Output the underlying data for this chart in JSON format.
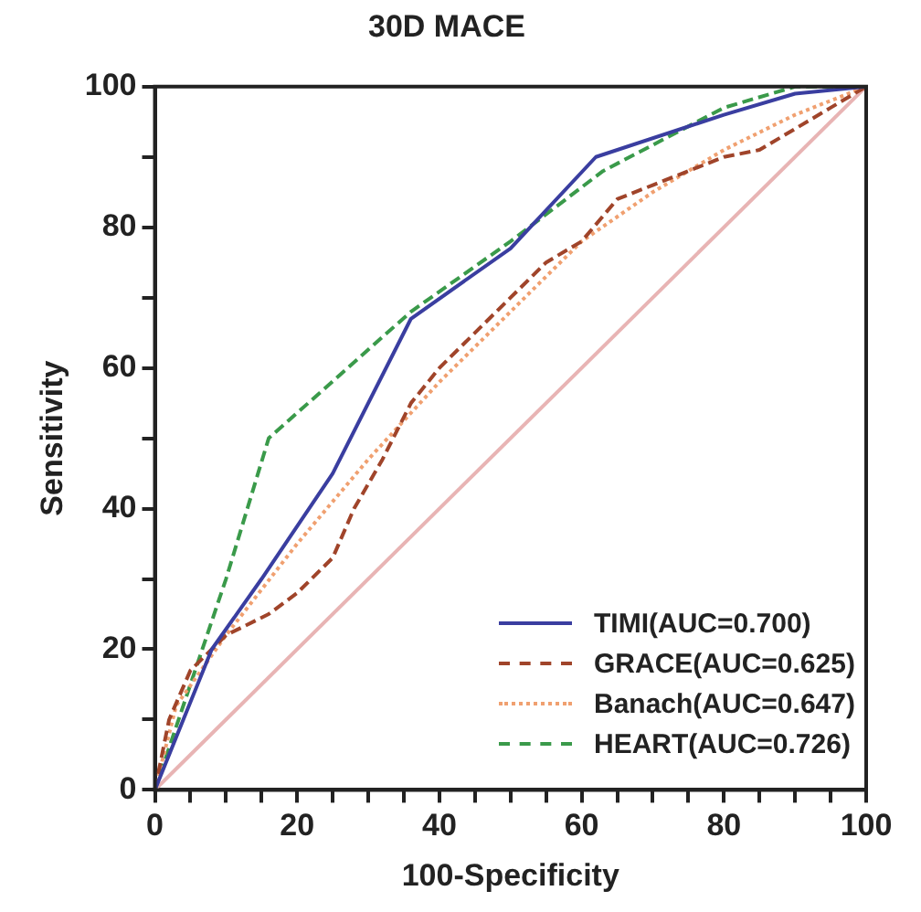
{
  "chart_data": {
    "type": "line",
    "title": "30D MACE",
    "xlabel": "100-Specificity",
    "ylabel": "Sensitivity",
    "xlim": [
      0,
      100
    ],
    "ylim": [
      0,
      100
    ],
    "xticks": [
      0,
      {
        "value": 5,
        "label": null
      },
      {
        "value": 10,
        "label": null
      },
      {
        "value": 15,
        "label": null
      },
      20,
      {
        "value": 25,
        "label": null
      },
      {
        "value": 30,
        "label": null
      },
      {
        "value": 35,
        "label": null
      },
      40,
      {
        "value": 45,
        "label": null
      },
      {
        "value": 50,
        "label": null
      },
      {
        "value": 55,
        "label": null
      },
      60,
      {
        "value": 65,
        "label": null
      },
      {
        "value": 70,
        "label": null
      },
      {
        "value": 75,
        "label": null
      },
      80,
      {
        "value": 85,
        "label": null
      },
      {
        "value": 90,
        "label": null
      },
      {
        "value": 95,
        "label": null
      },
      100
    ],
    "yticks": [
      0,
      {
        "value": 10,
        "label": null
      },
      20,
      {
        "value": 30,
        "label": null
      },
      40,
      {
        "value": 50,
        "label": null
      },
      60,
      {
        "value": 70,
        "label": null
      },
      80,
      {
        "value": 90,
        "label": null
      },
      100
    ],
    "grid": false,
    "legend": "bottom right",
    "marker": "none",
    "series": [
      {
        "name": "TIMI(AUC=0.700)",
        "color": "#3a3ea0",
        "line_style": "solid",
        "x": [
          0,
          8,
          15,
          25,
          36,
          50,
          62,
          80,
          90,
          100
        ],
        "values": [
          0,
          20,
          30,
          45,
          67,
          77,
          90,
          96,
          99,
          100
        ]
      },
      {
        "name": "GRACE(AUC=0.625)",
        "color": "#a0442a",
        "line_style": "dashed",
        "x": [
          0,
          2,
          5,
          10,
          16,
          20,
          25,
          28,
          32,
          36,
          40,
          45,
          50,
          55,
          60,
          65,
          70,
          75,
          80,
          85,
          90,
          95,
          100
        ],
        "values": [
          0,
          10,
          17,
          22,
          25,
          28,
          33,
          40,
          47,
          55,
          60,
          65,
          70,
          75,
          78,
          84,
          86,
          88,
          90,
          91,
          94,
          97,
          100
        ]
      },
      {
        "name": "Banach(AUC=0.647)",
        "color": "#f0a070",
        "line_style": "dotted",
        "x": [
          0,
          3,
          10,
          20,
          30,
          40,
          50,
          60,
          70,
          80,
          90,
          100
        ],
        "values": [
          0,
          12,
          22,
          35,
          47,
          58,
          68,
          78,
          85,
          91,
          96,
          100
        ]
      },
      {
        "name": "HEART(AUC=0.726)",
        "color": "#3a9a4a",
        "line_style": "dashed",
        "x": [
          0,
          5,
          10,
          16,
          36,
          50,
          63,
          80,
          90,
          100
        ],
        "values": [
          0,
          15,
          30,
          50,
          68,
          78,
          88,
          97,
          100,
          100
        ]
      },
      {
        "color": "#e8b4b4",
        "line_style": "solid",
        "x": [
          0,
          100
        ],
        "values": [
          0,
          100
        ]
      }
    ]
  }
}
